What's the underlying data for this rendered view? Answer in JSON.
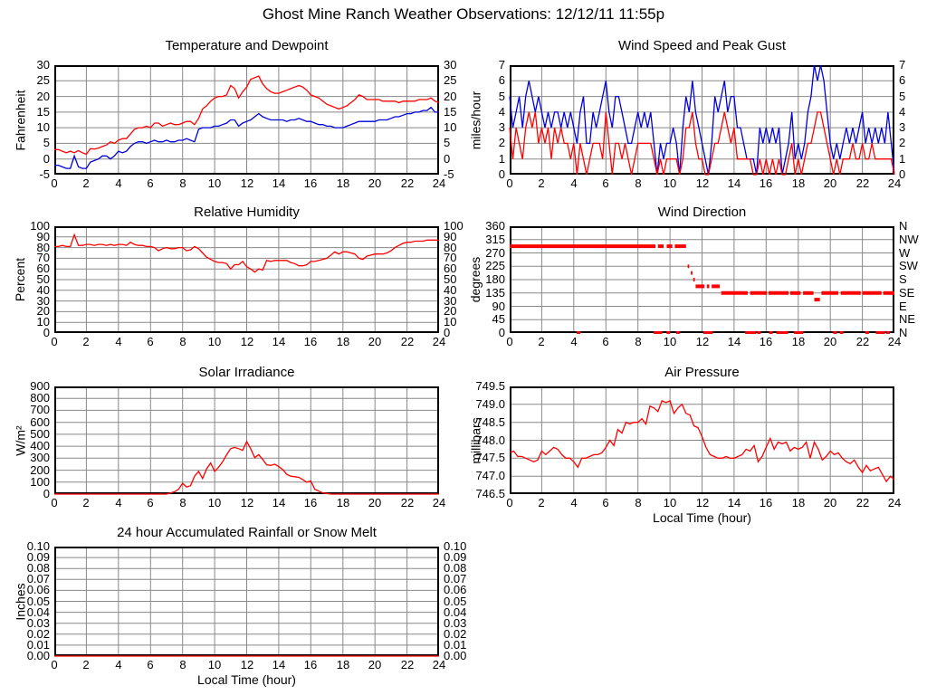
{
  "title": "Ghost Mine Ranch Weather Observations: 12/12/11 11:55p",
  "colors": {
    "red": "#ff0000",
    "blue": "#0000dd",
    "grid": "#888888",
    "frame": "#000000",
    "background": "#ffffff"
  },
  "x_axis": {
    "min": 0,
    "max": 24,
    "ticks": [
      0,
      2,
      4,
      6,
      8,
      10,
      12,
      14,
      16,
      18,
      20,
      22,
      24
    ],
    "tick_labels": [
      "0",
      "2",
      "4",
      "6",
      "8",
      "10",
      "12",
      "14",
      "16",
      "18",
      "20",
      "22",
      "24"
    ],
    "label": "Local Time (hour)"
  },
  "chart_data": [
    {
      "id": "temperature_dewpoint",
      "type": "line",
      "title": "Temperature and Dewpoint",
      "ylabel": "Fahrenheit",
      "ymin": -5,
      "ymax": 30,
      "ytick_values": [
        -5,
        0,
        5,
        10,
        15,
        20,
        25,
        30
      ],
      "ytick_labels": [
        "-5",
        "0",
        "5",
        "10",
        "15",
        "20",
        "25",
        "30"
      ],
      "right_ticks": true,
      "x_start": 0,
      "x_step": 0.25,
      "series": [
        {
          "name": "temperature",
          "color": "#ff0000",
          "values": [
            3,
            3,
            2.5,
            2,
            2.5,
            2,
            2.7,
            2,
            1.5,
            3.3,
            3.2,
            3.5,
            4,
            4.5,
            5.5,
            5,
            6,
            6.5,
            6.5,
            8,
            9.5,
            10,
            10,
            10.5,
            10,
            11.5,
            11.5,
            10.5,
            11,
            11.5,
            11,
            11,
            11.5,
            12,
            12,
            11,
            13,
            16,
            17,
            18.5,
            19.5,
            20,
            20,
            20.5,
            23.5,
            22.5,
            19.5,
            21.5,
            23,
            25.5,
            26,
            26.5,
            24,
            22.5,
            21.5,
            21,
            21,
            21.5,
            22,
            22.5,
            23,
            23.5,
            23,
            22,
            20.5,
            20,
            19.5,
            18.5,
            17.5,
            17,
            16.5,
            16,
            16.5,
            17,
            18,
            19,
            20.5,
            20,
            19,
            19,
            19,
            19,
            18.5,
            18.5,
            18.5,
            18.5,
            18,
            18.5,
            18.5,
            18.5,
            18.5,
            19,
            19,
            19,
            19.5,
            18.5,
            18
          ]
        },
        {
          "name": "dewpoint",
          "color": "#0000dd",
          "values": [
            -2,
            -2,
            -2.5,
            -3,
            -3,
            1,
            -2.5,
            -3,
            -3,
            -1,
            -0.5,
            0,
            1,
            1,
            0,
            1,
            2.5,
            2,
            2.5,
            4,
            5,
            5.5,
            5.5,
            5,
            5.5,
            6,
            5.5,
            5.5,
            6,
            5.5,
            5.5,
            6,
            6,
            6.5,
            6,
            5.5,
            9.5,
            10,
            10,
            10,
            10.5,
            10.5,
            11,
            11.5,
            12.5,
            12.5,
            10.5,
            11.5,
            12,
            12.5,
            13.5,
            14.5,
            13.5,
            13,
            12.5,
            12.5,
            12.5,
            12.5,
            12,
            12.5,
            12.5,
            13,
            12.5,
            12,
            12,
            11.5,
            11,
            11,
            10.5,
            10.5,
            10,
            10,
            10,
            10.5,
            11,
            11.5,
            12,
            12,
            12,
            12,
            12,
            12.5,
            12.5,
            12.5,
            13,
            13.5,
            13.5,
            14,
            14.5,
            14.5,
            15,
            15,
            15.5,
            15.5,
            16.5,
            15,
            15
          ]
        }
      ]
    },
    {
      "id": "wind_speed_gust",
      "type": "line",
      "title": "Wind Speed and Peak Gust",
      "ylabel": "miles/hour",
      "ymin": 0,
      "ymax": 7,
      "ytick_values": [
        0,
        1,
        2,
        3,
        4,
        5,
        6,
        7
      ],
      "ytick_labels": [
        "0",
        "1",
        "2",
        "3",
        "4",
        "5",
        "6",
        "7"
      ],
      "right_ticks": true,
      "x_start": 0,
      "x_step": 0.2,
      "series": [
        {
          "name": "peak_gust",
          "color": "#0000dd",
          "values": [
            5,
            3,
            4,
            5,
            3,
            5,
            6,
            5,
            4,
            5,
            4,
            3,
            4,
            3,
            4,
            4,
            3,
            4,
            3,
            4,
            3,
            2,
            4,
            5,
            2,
            2,
            4,
            3,
            4,
            5,
            6,
            4,
            3,
            5,
            5,
            4,
            3,
            2,
            2,
            3,
            4,
            3,
            4,
            3,
            4,
            2,
            0,
            2,
            1,
            2,
            2,
            3,
            2,
            0,
            3,
            5,
            4,
            6,
            4,
            3,
            2,
            1,
            0,
            2,
            5,
            4,
            5,
            6,
            4,
            5,
            5,
            3,
            3,
            2,
            1,
            1,
            1,
            0,
            3,
            2,
            3,
            2,
            3,
            2,
            3,
            0,
            1,
            2,
            4,
            1,
            2,
            1,
            2,
            4,
            5,
            7,
            6,
            7,
            6,
            4,
            2,
            1,
            2,
            1,
            2,
            3,
            2,
            3,
            2,
            3,
            4,
            2,
            3,
            2,
            3,
            2,
            3,
            2,
            4,
            2,
            0
          ]
        },
        {
          "name": "wind_speed",
          "color": "#ff0000",
          "values": [
            3,
            1,
            3,
            2,
            1,
            3,
            4,
            3,
            4,
            2,
            3,
            2,
            3,
            1,
            3,
            2,
            3,
            2,
            2,
            1,
            2,
            0,
            2,
            1,
            0,
            1,
            2,
            2,
            2,
            1,
            4,
            2,
            0,
            2,
            2,
            1,
            2,
            1,
            0,
            1,
            2,
            2,
            2,
            2,
            2,
            1,
            0,
            1,
            0,
            1,
            1,
            1,
            1,
            0,
            1,
            3,
            3,
            4,
            2,
            1,
            1,
            0,
            0,
            1,
            2,
            2,
            3,
            4,
            3,
            2,
            3,
            1,
            1,
            1,
            1,
            1,
            0,
            0,
            1,
            0,
            1,
            0,
            1,
            0,
            1,
            0,
            0,
            1,
            2,
            0,
            1,
            0,
            1,
            2,
            2,
            3,
            4,
            4,
            3,
            2,
            1,
            0,
            1,
            0,
            1,
            1,
            1,
            2,
            1,
            1,
            2,
            1,
            1,
            2,
            1,
            1,
            1,
            1,
            1,
            1,
            0
          ]
        }
      ]
    },
    {
      "id": "relative_humidity",
      "type": "line",
      "title": "Relative Humidity",
      "ylabel": "Percent",
      "ymin": 0,
      "ymax": 100,
      "ytick_values": [
        0,
        10,
        20,
        30,
        40,
        50,
        60,
        70,
        80,
        90,
        100
      ],
      "ytick_labels": [
        "0",
        "10",
        "20",
        "30",
        "40",
        "50",
        "60",
        "70",
        "80",
        "90",
        "100"
      ],
      "right_ticks": true,
      "x_start": 0,
      "x_step": 0.25,
      "series": [
        {
          "name": "humidity",
          "color": "#ff0000",
          "values": [
            81,
            81,
            82,
            81,
            81,
            92,
            82,
            82,
            83,
            83,
            82,
            83,
            83,
            82,
            83,
            82,
            83,
            83,
            82,
            85,
            83,
            82,
            82,
            81,
            81,
            80,
            77,
            79,
            80,
            79,
            79,
            80,
            80,
            77,
            78,
            81,
            79,
            75,
            71,
            69,
            67,
            66,
            66,
            65,
            60,
            64,
            64,
            67,
            62,
            60,
            57,
            60,
            59,
            68,
            67,
            68,
            68,
            68,
            68,
            66,
            65,
            63,
            63,
            64,
            67,
            67,
            68,
            69,
            70,
            73,
            76,
            74,
            76,
            76,
            75,
            74,
            70,
            69,
            72,
            73,
            74,
            74,
            74,
            75,
            77,
            80,
            82,
            84,
            85,
            85,
            86,
            86,
            86,
            87,
            87,
            87,
            87
          ]
        }
      ]
    },
    {
      "id": "wind_direction",
      "type": "scatter",
      "title": "Wind Direction",
      "ylabel": "degrees",
      "ymin": 0,
      "ymax": 360,
      "ytick_values": [
        0,
        45,
        90,
        135,
        180,
        225,
        270,
        315,
        360
      ],
      "ytick_labels": [
        "0",
        "45",
        "90",
        "135",
        "180",
        "225",
        "270",
        "315",
        "360"
      ],
      "right_ticks": true,
      "right_tick_labels": [
        "N",
        "NE",
        "E",
        "SE",
        "S",
        "SW",
        "W",
        "NW",
        "N"
      ],
      "marker_color": "#ff0000",
      "segments": [
        [
          0,
          9.1,
          292.5
        ],
        [
          9.25,
          9.6,
          292.5
        ],
        [
          9.8,
          10.15,
          292.5
        ],
        [
          10.3,
          11.0,
          292.5
        ],
        [
          11.1,
          11.2,
          225
        ],
        [
          11.3,
          11.4,
          202.5
        ],
        [
          11.45,
          11.55,
          180
        ],
        [
          11.6,
          12.15,
          157.5
        ],
        [
          12.3,
          12.45,
          157.5
        ],
        [
          12.6,
          13.1,
          157.5
        ],
        [
          13.2,
          14.85,
          135
        ],
        [
          15.0,
          16.05,
          135
        ],
        [
          16.15,
          17.4,
          135
        ],
        [
          17.5,
          18.15,
          135
        ],
        [
          18.3,
          18.95,
          135
        ],
        [
          19.0,
          19.35,
          112.5
        ],
        [
          19.45,
          20.5,
          135
        ],
        [
          20.65,
          21.9,
          135
        ],
        [
          22.0,
          23.2,
          135
        ],
        [
          23.3,
          24.0,
          135
        ]
      ],
      "zero_hours": [
        4.3,
        9.1,
        9.25,
        9.4,
        9.9,
        10.5,
        12.2,
        12.35,
        12.55,
        14.8,
        14.95,
        15.1,
        15.25,
        15.55,
        16.3,
        16.75,
        16.9,
        17.1,
        17.25,
        17.85,
        18.0,
        18.2,
        20.3,
        20.7,
        22.3,
        22.95,
        23.1,
        23.3,
        23.6
      ]
    },
    {
      "id": "solar_irradiance",
      "type": "line",
      "title": "Solar Irradiance",
      "ylabel": "W/m²",
      "ymin": 0,
      "ymax": 900,
      "ytick_values": [
        0,
        100,
        200,
        300,
        400,
        500,
        600,
        700,
        800,
        900
      ],
      "ytick_labels": [
        "0",
        "100",
        "200",
        "300",
        "400",
        "500",
        "600",
        "700",
        "800",
        "900"
      ],
      "right_ticks": false,
      "x_start": 0,
      "x_step": 0.25,
      "series": [
        {
          "name": "solar",
          "color": "#ff0000",
          "values": [
            0,
            0,
            0,
            0,
            0,
            0,
            0,
            0,
            0,
            0,
            0,
            0,
            0,
            0,
            0,
            0,
            0,
            0,
            0,
            0,
            0,
            0,
            0,
            0,
            0,
            0,
            0,
            0,
            0,
            10,
            20,
            40,
            90,
            60,
            70,
            150,
            190,
            130,
            210,
            260,
            190,
            225,
            270,
            330,
            380,
            390,
            380,
            365,
            440,
            380,
            305,
            330,
            290,
            245,
            240,
            250,
            230,
            205,
            165,
            150,
            145,
            140,
            120,
            100,
            110,
            40,
            25,
            10,
            5,
            0,
            0,
            0,
            0,
            0,
            0,
            0,
            0,
            0,
            0,
            0,
            0,
            0,
            0,
            0,
            0,
            0,
            0,
            0,
            0,
            0,
            0,
            0,
            0,
            0,
            0,
            0,
            0
          ]
        }
      ]
    },
    {
      "id": "air_pressure",
      "type": "line",
      "title": "Air Pressure",
      "ylabel": "millibars",
      "xlabel": "Local Time (hour)",
      "ymin": 746.5,
      "ymax": 749.5,
      "ytick_values": [
        746.5,
        747.0,
        747.5,
        748.0,
        748.5,
        749.0,
        749.5
      ],
      "ytick_labels": [
        "746.5",
        "747.0",
        "747.5",
        "748.0",
        "748.5",
        "749.0",
        "749.5"
      ],
      "right_ticks": false,
      "x_start": 0,
      "x_step": 0.25,
      "series": [
        {
          "name": "pressure",
          "color": "#ff0000",
          "values": [
            747.65,
            747.7,
            747.55,
            747.55,
            747.5,
            747.45,
            747.4,
            747.45,
            747.7,
            747.6,
            747.7,
            747.8,
            747.75,
            747.6,
            747.5,
            747.5,
            747.4,
            747.25,
            747.5,
            747.5,
            747.55,
            747.6,
            747.6,
            747.65,
            747.8,
            748.0,
            747.85,
            748.3,
            748.2,
            748.5,
            748.45,
            748.5,
            748.5,
            748.6,
            748.45,
            748.95,
            748.9,
            748.8,
            749.1,
            749.05,
            749.1,
            748.75,
            748.9,
            749.0,
            748.75,
            748.7,
            748.4,
            748.35,
            748.1,
            747.8,
            747.6,
            747.55,
            747.5,
            747.5,
            747.55,
            747.5,
            747.5,
            747.55,
            747.6,
            747.75,
            747.7,
            747.85,
            747.4,
            747.55,
            747.8,
            748.05,
            747.75,
            747.95,
            747.9,
            747.95,
            747.7,
            747.8,
            747.75,
            747.8,
            747.95,
            747.5,
            747.95,
            747.75,
            747.45,
            747.55,
            747.7,
            747.6,
            747.65,
            747.5,
            747.4,
            747.35,
            747.45,
            747.25,
            747.1,
            747.3,
            747.15,
            747.2,
            747.25,
            747.05,
            746.85,
            747.0,
            746.9
          ]
        }
      ]
    },
    {
      "id": "rainfall",
      "type": "line",
      "title": "24 hour Accumulated Rainfall or Snow Melt",
      "ylabel": "Inches",
      "xlabel": "Local Time (hour)",
      "ymin": 0,
      "ymax": 0.1,
      "ytick_values": [
        0,
        0.01,
        0.02,
        0.03,
        0.04,
        0.05,
        0.06,
        0.07,
        0.08,
        0.09,
        0.1
      ],
      "ytick_labels": [
        "0.00",
        "0.01",
        "0.02",
        "0.03",
        "0.04",
        "0.05",
        "0.06",
        "0.07",
        "0.08",
        "0.09",
        "0.10"
      ],
      "right_ticks": true,
      "series": [
        {
          "name": "rainfall",
          "color": "#ff0000",
          "x": [
            0,
            24
          ],
          "values": [
            0,
            0
          ]
        }
      ]
    }
  ]
}
